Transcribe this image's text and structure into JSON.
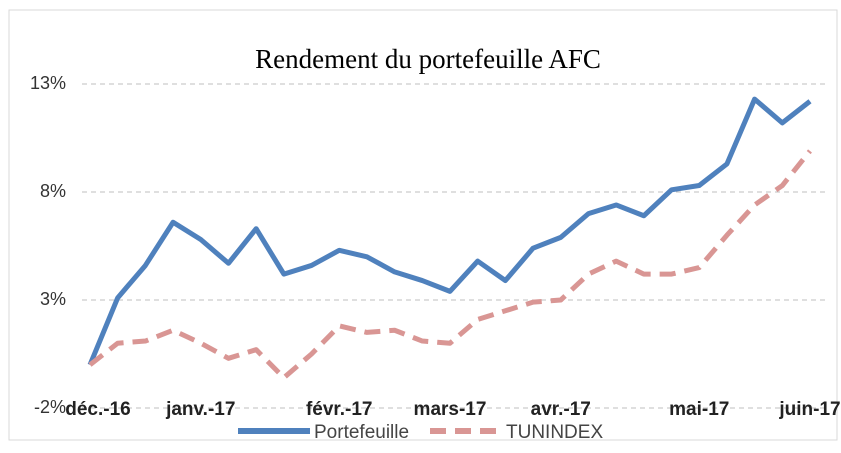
{
  "chart_data": {
    "type": "line",
    "title": "Rendement du portefeuille AFC",
    "categories": [
      "déc.-16",
      null,
      null,
      null,
      "janv.-17",
      null,
      null,
      null,
      null,
      "févr.-17",
      null,
      null,
      null,
      "mars-17",
      null,
      null,
      null,
      "avr.-17",
      null,
      null,
      null,
      null,
      "mai-17",
      null,
      null,
      null,
      "juin-17"
    ],
    "series": [
      {
        "name": "Portefeuille",
        "color": "#4f81bd",
        "dash": false,
        "values": [
          0,
          3.1,
          4.6,
          6.6,
          5.8,
          4.7,
          6.3,
          4.2,
          4.6,
          5.3,
          5.0,
          4.3,
          3.9,
          3.4,
          4.8,
          3.9,
          5.4,
          5.9,
          7.0,
          7.4,
          6.9,
          8.1,
          8.3,
          9.3,
          12.3,
          11.2,
          12.2
        ]
      },
      {
        "name": "TUNINDEX",
        "color": "#d99694",
        "dash": true,
        "values": [
          0,
          1.0,
          1.1,
          1.6,
          1.0,
          0.3,
          0.7,
          -0.6,
          0.5,
          1.8,
          1.5,
          1.6,
          1.1,
          1.0,
          2.1,
          2.5,
          2.9,
          3.0,
          4.2,
          4.8,
          4.2,
          4.2,
          4.5,
          6.0,
          7.4,
          8.3,
          9.9
        ]
      }
    ],
    "ylim": [
      -2,
      13
    ],
    "yticks": [
      {
        "value": -2,
        "label": "-2%"
      },
      {
        "value": 3,
        "label": "3%"
      },
      {
        "value": 8,
        "label": "8%"
      },
      {
        "value": 13,
        "label": "13%"
      }
    ],
    "grid": true,
    "legend": "bottom"
  }
}
